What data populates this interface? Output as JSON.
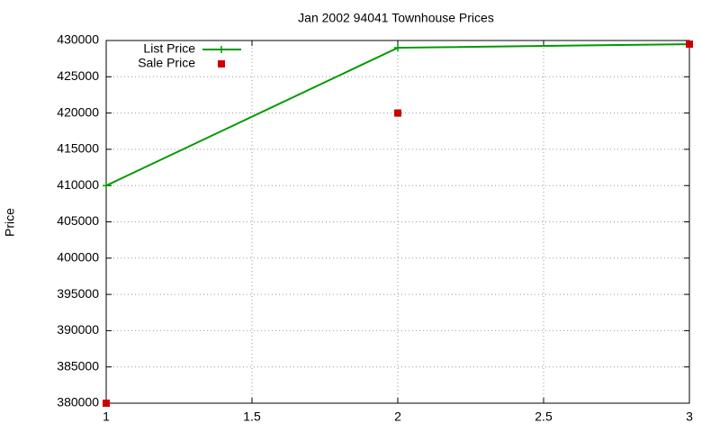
{
  "chart_data": {
    "type": "line",
    "title": "Jan 2002 94041 Townhouse Prices",
    "y_label": "Price",
    "x": [
      1,
      2,
      3
    ],
    "series": [
      {
        "name": "List Price",
        "color": "#009900",
        "style": "linespoints",
        "values": [
          410000,
          429000,
          429500
        ]
      },
      {
        "name": "Sale Price",
        "color": "#cc0000",
        "style": "points",
        "values": [
          380000,
          420000,
          429500
        ]
      }
    ],
    "xlim": [
      1,
      3
    ],
    "xticks": [
      1,
      1.5,
      2,
      2.5,
      3
    ],
    "ylim": [
      380000,
      430000
    ],
    "yticks": [
      380000,
      385000,
      390000,
      395000,
      400000,
      405000,
      410000,
      415000,
      420000,
      425000,
      430000
    ],
    "grid": true,
    "legend": "top-left"
  }
}
